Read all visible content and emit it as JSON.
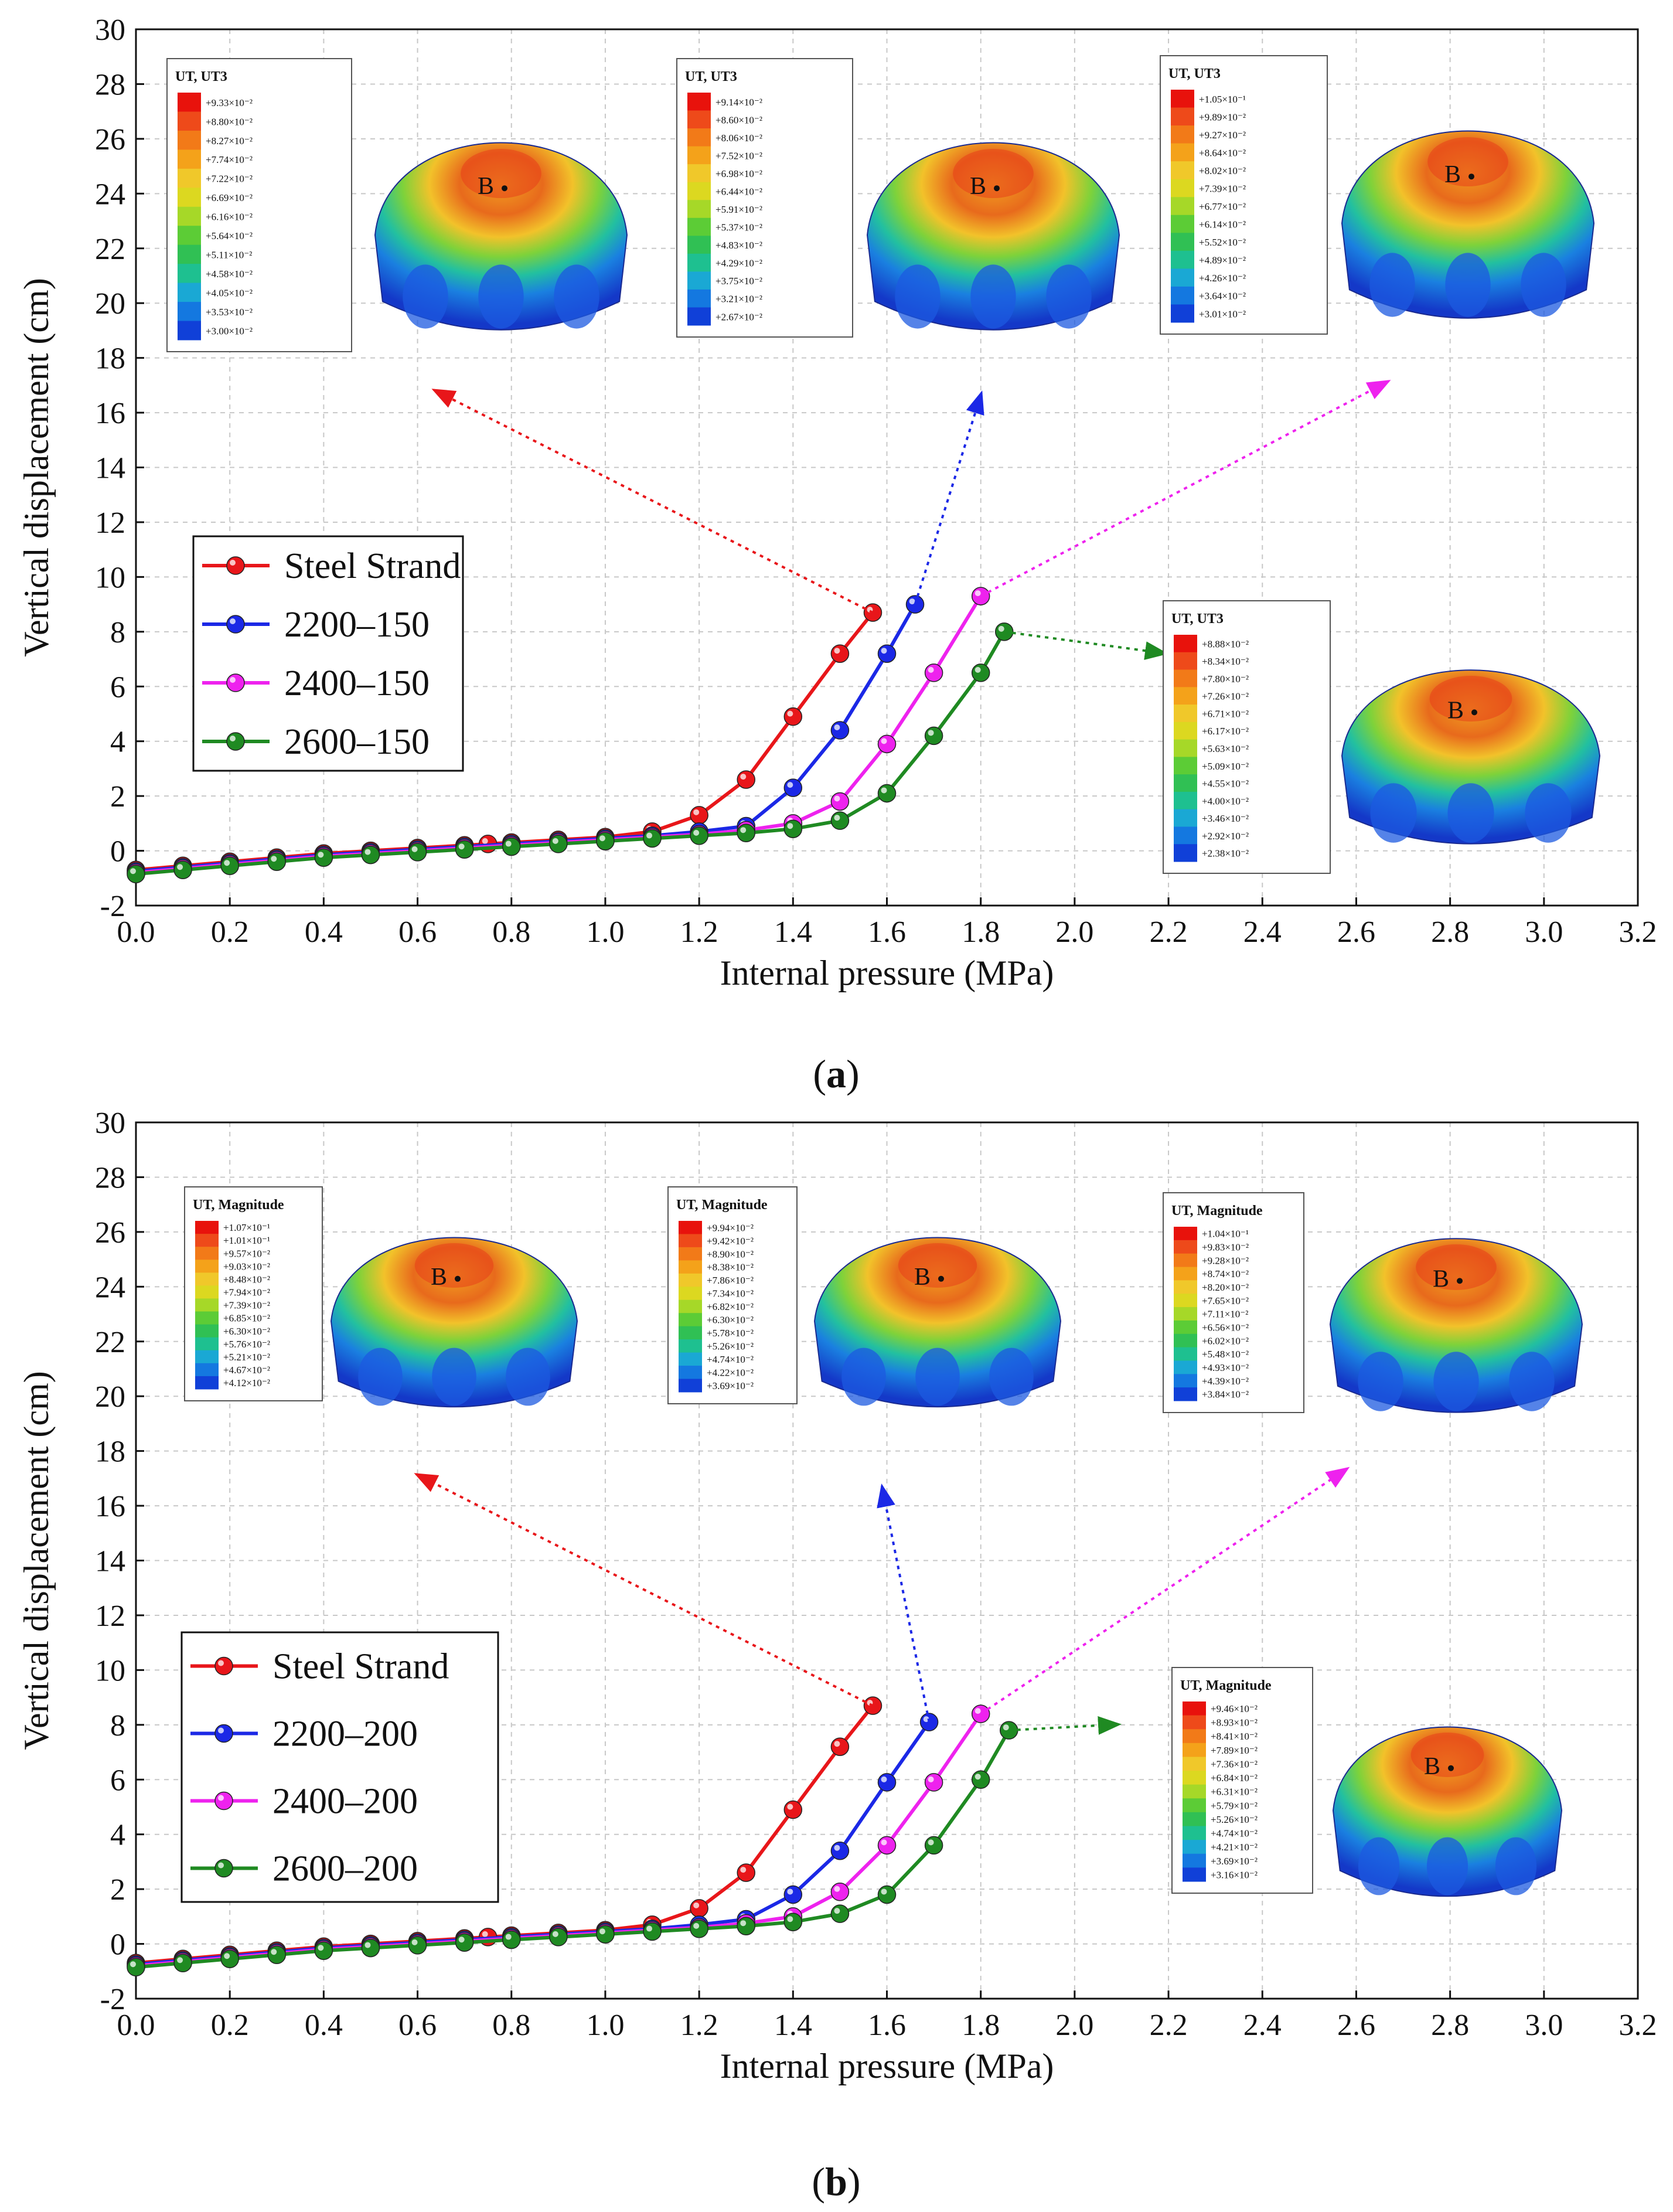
{
  "figure": {
    "panels": [
      "(a)",
      "(b)"
    ],
    "panel_letters": [
      "a",
      "b"
    ]
  },
  "colorbar_palette": [
    "#e8120c",
    "#ee4a1a",
    "#f27a18",
    "#f4a21a",
    "#f0c82a",
    "#dcd820",
    "#a6d828",
    "#5ccc36",
    "#30c054",
    "#1ec090",
    "#1aa8d4",
    "#1478e0",
    "#1040d8"
  ],
  "chart_data": [
    {
      "type": "line",
      "xlabel": "Internal pressure (MPa)",
      "ylabel": "Vertical displacement (cm)",
      "xlim": [
        0.0,
        3.2
      ],
      "ylim": [
        -2,
        30
      ],
      "xticks": [
        "0.0",
        "0.2",
        "0.4",
        "0.6",
        "0.8",
        "1.0",
        "1.2",
        "1.4",
        "1.6",
        "1.8",
        "2.0",
        "2.2",
        "2.4",
        "2.6",
        "2.8",
        "3.0",
        "3.2"
      ],
      "yticks": [
        "-2",
        "0",
        "2",
        "4",
        "6",
        "8",
        "10",
        "12",
        "14",
        "16",
        "18",
        "20",
        "22",
        "24",
        "26",
        "28",
        "30"
      ],
      "legend_position": "center-left",
      "series": [
        {
          "name": "Steel Strand",
          "color": "#e8161a",
          "x": [
            0.0,
            0.1,
            0.2,
            0.3,
            0.4,
            0.5,
            0.6,
            0.7,
            0.75,
            0.8,
            0.9,
            1.0,
            1.1,
            1.2,
            1.3,
            1.4,
            1.5,
            1.57
          ],
          "y": [
            -0.7,
            -0.55,
            -0.4,
            -0.25,
            -0.1,
            0.0,
            0.1,
            0.2,
            0.25,
            0.3,
            0.4,
            0.5,
            0.7,
            1.3,
            2.6,
            4.9,
            7.2,
            8.7
          ]
        },
        {
          "name": "2200–150",
          "color": "#1b28e6",
          "x": [
            0.0,
            0.1,
            0.2,
            0.3,
            0.4,
            0.5,
            0.6,
            0.7,
            0.8,
            0.9,
            1.0,
            1.1,
            1.2,
            1.3,
            1.4,
            1.5,
            1.6,
            1.66
          ],
          "y": [
            -0.75,
            -0.6,
            -0.45,
            -0.3,
            -0.15,
            -0.05,
            0.05,
            0.15,
            0.25,
            0.35,
            0.45,
            0.55,
            0.7,
            0.9,
            2.3,
            4.4,
            7.2,
            9.0
          ]
        },
        {
          "name": "2400–150",
          "color": "#ee22ee",
          "x": [
            0.0,
            0.1,
            0.2,
            0.3,
            0.4,
            0.5,
            0.6,
            0.7,
            0.8,
            0.9,
            1.0,
            1.1,
            1.2,
            1.3,
            1.4,
            1.5,
            1.6,
            1.7,
            1.8
          ],
          "y": [
            -0.8,
            -0.65,
            -0.5,
            -0.35,
            -0.2,
            -0.1,
            0.0,
            0.1,
            0.2,
            0.3,
            0.4,
            0.5,
            0.6,
            0.75,
            1.0,
            1.8,
            3.9,
            6.5,
            9.3
          ]
        },
        {
          "name": "2600–150",
          "color": "#1f8a22",
          "x": [
            0.0,
            0.1,
            0.2,
            0.3,
            0.4,
            0.5,
            0.6,
            0.7,
            0.8,
            0.9,
            1.0,
            1.1,
            1.2,
            1.3,
            1.4,
            1.5,
            1.6,
            1.7,
            1.8,
            1.85
          ],
          "y": [
            -0.85,
            -0.7,
            -0.55,
            -0.4,
            -0.25,
            -0.15,
            -0.05,
            0.05,
            0.15,
            0.25,
            0.35,
            0.45,
            0.55,
            0.65,
            0.8,
            1.1,
            2.1,
            4.2,
            6.5,
            8.0
          ]
        }
      ],
      "insets": [
        {
          "title": "UT, UT3",
          "values": [
            "+9.33×10⁻²",
            "+8.80×10⁻²",
            "+8.27×10⁻²",
            "+7.74×10⁻²",
            "+7.22×10⁻²",
            "+6.69×10⁻²",
            "+6.16×10⁻²",
            "+5.64×10⁻²",
            "+5.11×10⁻²",
            "+4.58×10⁻²",
            "+4.05×10⁻²",
            "+3.53×10⁻²",
            "+3.00×10⁻²"
          ],
          "point": "B"
        },
        {
          "title": "UT, UT3",
          "values": [
            "+9.14×10⁻²",
            "+8.60×10⁻²",
            "+8.06×10⁻²",
            "+7.52×10⁻²",
            "+6.98×10⁻²",
            "+6.44×10⁻²",
            "+5.91×10⁻²",
            "+5.37×10⁻²",
            "+4.83×10⁻²",
            "+4.29×10⁻²",
            "+3.75×10⁻²",
            "+3.21×10⁻²",
            "+2.67×10⁻²"
          ],
          "point": "B"
        },
        {
          "title": "UT, UT3",
          "values": [
            "+1.05×10⁻¹",
            "+9.89×10⁻²",
            "+9.27×10⁻²",
            "+8.64×10⁻²",
            "+8.02×10⁻²",
            "+7.39×10⁻²",
            "+6.77×10⁻²",
            "+6.14×10⁻²",
            "+5.52×10⁻²",
            "+4.89×10⁻²",
            "+4.26×10⁻²",
            "+3.64×10⁻²",
            "+3.01×10⁻²"
          ],
          "point": "B"
        },
        {
          "title": "UT, UT3",
          "values": [
            "+8.88×10⁻²",
            "+8.34×10⁻²",
            "+7.80×10⁻²",
            "+7.26×10⁻²",
            "+6.71×10⁻²",
            "+6.17×10⁻²",
            "+5.63×10⁻²",
            "+5.09×10⁻²",
            "+4.55×10⁻²",
            "+4.00×10⁻²",
            "+3.46×10⁻²",
            "+2.92×10⁻²",
            "+2.38×10⁻²"
          ],
          "point": "B"
        }
      ]
    },
    {
      "type": "line",
      "xlabel": "Internal pressure (MPa)",
      "ylabel": "Vertical displacement (cm)",
      "xlim": [
        0.0,
        3.2
      ],
      "ylim": [
        -2,
        30
      ],
      "xticks": [
        "0.0",
        "0.2",
        "0.4",
        "0.6",
        "0.8",
        "1.0",
        "1.2",
        "1.4",
        "1.6",
        "1.8",
        "2.0",
        "2.2",
        "2.4",
        "2.6",
        "2.8",
        "3.0",
        "3.2"
      ],
      "yticks": [
        "-2",
        "0",
        "2",
        "4",
        "6",
        "8",
        "10",
        "12",
        "14",
        "16",
        "18",
        "20",
        "22",
        "24",
        "26",
        "28",
        "30"
      ],
      "legend_position": "center-left",
      "series": [
        {
          "name": "Steel Strand",
          "color": "#e8161a",
          "x": [
            0.0,
            0.1,
            0.2,
            0.3,
            0.4,
            0.5,
            0.6,
            0.7,
            0.75,
            0.8,
            0.9,
            1.0,
            1.1,
            1.2,
            1.3,
            1.4,
            1.5,
            1.57
          ],
          "y": [
            -0.7,
            -0.55,
            -0.4,
            -0.25,
            -0.1,
            0.0,
            0.1,
            0.2,
            0.25,
            0.3,
            0.4,
            0.5,
            0.7,
            1.3,
            2.6,
            4.9,
            7.2,
            8.7
          ]
        },
        {
          "name": "2200–200",
          "color": "#1b28e6",
          "x": [
            0.0,
            0.1,
            0.2,
            0.3,
            0.4,
            0.5,
            0.6,
            0.7,
            0.8,
            0.9,
            1.0,
            1.1,
            1.2,
            1.3,
            1.4,
            1.5,
            1.6,
            1.69
          ],
          "y": [
            -0.75,
            -0.6,
            -0.45,
            -0.3,
            -0.15,
            -0.05,
            0.05,
            0.15,
            0.25,
            0.35,
            0.45,
            0.55,
            0.7,
            0.9,
            1.8,
            3.4,
            5.9,
            8.1
          ]
        },
        {
          "name": "2400–200",
          "color": "#ee22ee",
          "x": [
            0.0,
            0.1,
            0.2,
            0.3,
            0.4,
            0.5,
            0.6,
            0.7,
            0.8,
            0.9,
            1.0,
            1.1,
            1.2,
            1.3,
            1.4,
            1.5,
            1.6,
            1.7,
            1.8
          ],
          "y": [
            -0.8,
            -0.65,
            -0.5,
            -0.35,
            -0.2,
            -0.1,
            0.0,
            0.1,
            0.2,
            0.3,
            0.4,
            0.5,
            0.6,
            0.75,
            1.0,
            1.9,
            3.6,
            5.9,
            8.4
          ]
        },
        {
          "name": "2600–200",
          "color": "#1f8a22",
          "x": [
            0.0,
            0.1,
            0.2,
            0.3,
            0.4,
            0.5,
            0.6,
            0.7,
            0.8,
            0.9,
            1.0,
            1.1,
            1.2,
            1.3,
            1.4,
            1.5,
            1.6,
            1.7,
            1.8,
            1.86
          ],
          "y": [
            -0.85,
            -0.7,
            -0.55,
            -0.4,
            -0.25,
            -0.15,
            -0.05,
            0.05,
            0.15,
            0.25,
            0.35,
            0.45,
            0.55,
            0.65,
            0.8,
            1.1,
            1.8,
            3.6,
            6.0,
            7.8
          ]
        }
      ],
      "insets": [
        {
          "title": "UT, Magnitude",
          "values": [
            "+1.07×10⁻¹",
            "+1.01×10⁻¹",
            "+9.57×10⁻²",
            "+9.03×10⁻²",
            "+8.48×10⁻²",
            "+7.94×10⁻²",
            "+7.39×10⁻²",
            "+6.85×10⁻²",
            "+6.30×10⁻²",
            "+5.76×10⁻²",
            "+5.21×10⁻²",
            "+4.67×10⁻²",
            "+4.12×10⁻²"
          ],
          "point": "B"
        },
        {
          "title": "UT, Magnitude",
          "values": [
            "+9.94×10⁻²",
            "+9.42×10⁻²",
            "+8.90×10⁻²",
            "+8.38×10⁻²",
            "+7.86×10⁻²",
            "+7.34×10⁻²",
            "+6.82×10⁻²",
            "+6.30×10⁻²",
            "+5.78×10⁻²",
            "+5.26×10⁻²",
            "+4.74×10⁻²",
            "+4.22×10⁻²",
            "+3.69×10⁻²"
          ],
          "point": "B"
        },
        {
          "title": "UT, Magnitude",
          "values": [
            "+1.04×10⁻¹",
            "+9.83×10⁻²",
            "+9.28×10⁻²",
            "+8.74×10⁻²",
            "+8.20×10⁻²",
            "+7.65×10⁻²",
            "+7.11×10⁻²",
            "+6.56×10⁻²",
            "+6.02×10⁻²",
            "+5.48×10⁻²",
            "+4.93×10⁻²",
            "+4.39×10⁻²",
            "+3.84×10⁻²"
          ],
          "point": "B"
        },
        {
          "title": "UT, Magnitude",
          "values": [
            "+9.46×10⁻²",
            "+8.93×10⁻²",
            "+8.41×10⁻²",
            "+7.89×10⁻²",
            "+7.36×10⁻²",
            "+6.84×10⁻²",
            "+6.31×10⁻²",
            "+5.79×10⁻²",
            "+5.26×10⁻²",
            "+4.74×10⁻²",
            "+4.21×10⁻²",
            "+3.69×10⁻²",
            "+3.16×10⁻²"
          ],
          "point": "B"
        }
      ]
    }
  ]
}
